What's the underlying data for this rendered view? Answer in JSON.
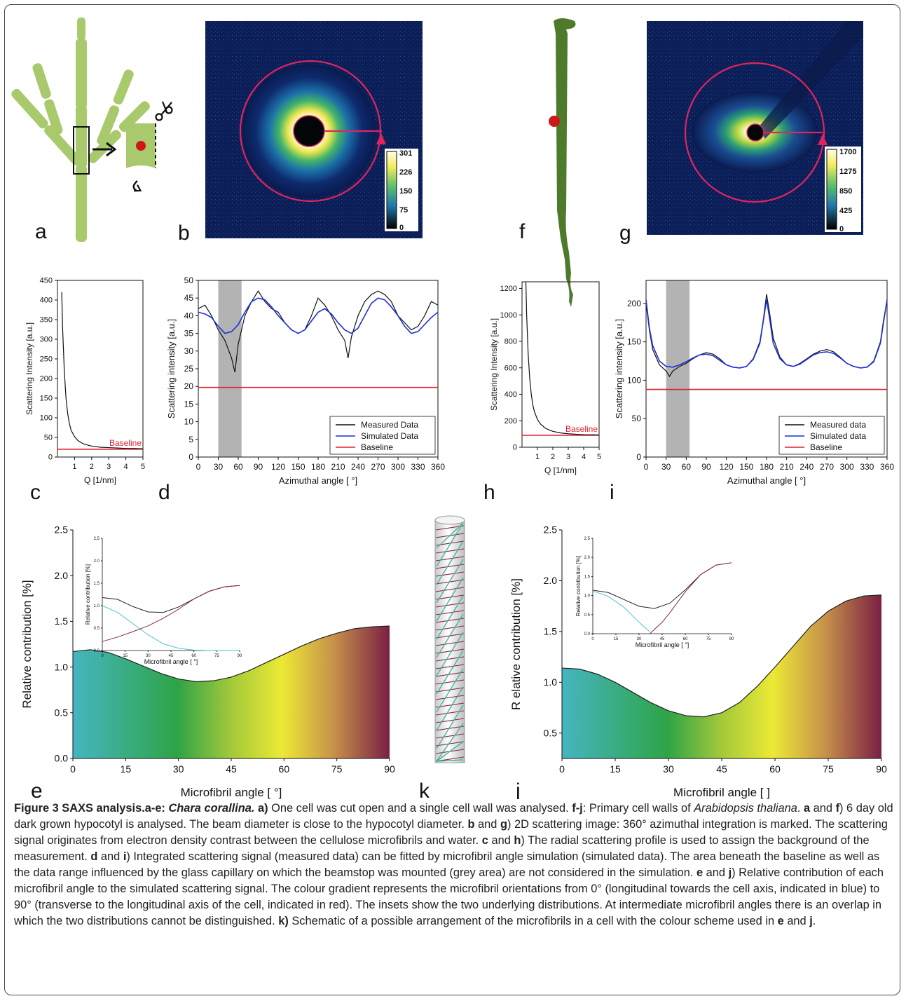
{
  "panel_letters": {
    "a": "a",
    "b": "b",
    "c": "c",
    "d": "d",
    "e": "e",
    "f": "f",
    "g": "g",
    "h": "h",
    "i": "i",
    "j": "j",
    "k": "k"
  },
  "colorbar_b": {
    "ticks": [
      "301",
      "226",
      "150",
      "75",
      "0"
    ]
  },
  "colorbar_g": {
    "ticks": [
      "1700",
      "1275",
      "850",
      "425",
      "0"
    ]
  },
  "colors": {
    "baseline": "#e0202e",
    "measured": "#111111",
    "simulated": "#1c2fd8",
    "ring": "#e0245e",
    "plant_light": "#a9c96d",
    "plant_dark": "#4e7a2c"
  },
  "chart_data": [
    {
      "id": "c",
      "type": "line",
      "ylabel": "Scattering Intensity [a.u.]",
      "xlabel": "Q [1/nm]",
      "xlim": [
        0,
        5
      ],
      "ylim": [
        0,
        450
      ],
      "xticks": [
        "1",
        "2",
        "3",
        "4",
        "5"
      ],
      "yticks": [
        "0",
        "50",
        "100",
        "150",
        "200",
        "250",
        "300",
        "350",
        "400",
        "450"
      ],
      "baseline": 20,
      "annotation": "Baseline",
      "series": [
        {
          "x": [
            0.25,
            0.3,
            0.4,
            0.5,
            0.6,
            0.7,
            0.8,
            1.0,
            1.2,
            1.5,
            1.8,
            2.0,
            2.5,
            3.0,
            3.5,
            4.0,
            4.5,
            5.0
          ],
          "y": [
            420,
            330,
            220,
            150,
            110,
            85,
            68,
            52,
            42,
            34,
            30,
            28,
            25,
            24,
            23,
            22,
            22,
            21
          ]
        }
      ]
    },
    {
      "id": "d",
      "type": "line",
      "ylabel": "Scattering intensity [a.u.]",
      "xlabel": "Azimuthal angle [ °]",
      "xlim": [
        0,
        360
      ],
      "ylim": [
        0,
        50
      ],
      "xticks": [
        "0",
        "30",
        "60",
        "90",
        "120",
        "150",
        "180",
        "210",
        "240",
        "270",
        "300",
        "330",
        "360"
      ],
      "yticks": [
        "0",
        "5",
        "10",
        "15",
        "20",
        "25",
        "30",
        "35",
        "40",
        "45",
        "50"
      ],
      "shaded": [
        30,
        65
      ],
      "baseline": 19.7,
      "legend": [
        "Measured Data",
        "Simulated Data",
        "Baseline"
      ],
      "series": [
        {
          "name": "Measured Data",
          "x": [
            0,
            10,
            20,
            30,
            40,
            50,
            55,
            60,
            70,
            80,
            90,
            100,
            110,
            120,
            130,
            140,
            150,
            160,
            170,
            180,
            190,
            200,
            210,
            220,
            225,
            230,
            240,
            250,
            260,
            270,
            280,
            290,
            300,
            310,
            320,
            330,
            340,
            350,
            360
          ],
          "y": [
            42,
            43,
            40,
            36,
            33,
            28,
            24,
            32,
            40,
            44,
            47,
            44,
            42,
            41,
            38,
            36,
            35,
            36,
            40,
            45,
            43,
            40,
            36,
            33,
            28,
            34,
            40,
            44,
            46,
            47,
            46,
            44,
            40,
            38,
            36,
            37,
            40,
            44,
            43
          ]
        },
        {
          "name": "Simulated Data",
          "x": [
            0,
            10,
            20,
            30,
            40,
            50,
            60,
            70,
            80,
            90,
            100,
            110,
            120,
            130,
            140,
            150,
            160,
            170,
            180,
            190,
            200,
            210,
            220,
            230,
            240,
            250,
            260,
            270,
            280,
            290,
            300,
            310,
            320,
            330,
            340,
            350,
            360
          ],
          "y": [
            41,
            40.5,
            39.5,
            37,
            35,
            35.5,
            37.5,
            41,
            44,
            45,
            44.5,
            42.5,
            40,
            38,
            36,
            35,
            36,
            38.5,
            41,
            42,
            40.5,
            38,
            36,
            35,
            36.5,
            40,
            43.5,
            45,
            44.5,
            42.5,
            40,
            37,
            35,
            35.5,
            37.5,
            39.5,
            41
          ]
        }
      ]
    },
    {
      "id": "h",
      "type": "line",
      "ylabel": "Scattering Intensity [a.u.]",
      "xlabel": "Q [1/nm]",
      "xlim": [
        0,
        5
      ],
      "ylim": [
        0,
        1250
      ],
      "xticks": [
        "1",
        "2",
        "3",
        "4",
        "5"
      ],
      "yticks": [
        "0",
        "200",
        "400",
        "600",
        "800",
        "1000",
        "1200"
      ],
      "baseline": 90,
      "annotation": "Baseline",
      "series": [
        {
          "x": [
            0.25,
            0.3,
            0.4,
            0.5,
            0.6,
            0.7,
            0.8,
            1.0,
            1.2,
            1.5,
            1.8,
            2.0,
            2.5,
            3.0,
            3.5,
            4.0,
            4.5,
            5.0
          ],
          "y": [
            1250,
            1000,
            700,
            520,
            400,
            320,
            270,
            210,
            175,
            145,
            128,
            120,
            108,
            102,
            98,
            95,
            94,
            93
          ]
        }
      ]
    },
    {
      "id": "i",
      "type": "line",
      "ylabel": "Scattering intensity [a.u.]",
      "xlabel": "Azimuthal angle [ °]",
      "xlim": [
        0,
        360
      ],
      "ylim": [
        0,
        230
      ],
      "xticks": [
        "0",
        "30",
        "60",
        "90",
        "120",
        "150",
        "180",
        "210",
        "240",
        "270",
        "300",
        "330",
        "360"
      ],
      "yticks": [
        "0",
        "50",
        "100",
        "150",
        "200"
      ],
      "shaded": [
        30,
        65
      ],
      "baseline": 88,
      "legend": [
        "Measured data",
        "Simulated data",
        "Baseline"
      ],
      "series": [
        {
          "name": "Measured data",
          "x": [
            0,
            5,
            10,
            20,
            30,
            35,
            40,
            50,
            60,
            70,
            80,
            90,
            100,
            110,
            120,
            130,
            140,
            150,
            160,
            170,
            175,
            180,
            185,
            190,
            200,
            210,
            220,
            230,
            240,
            250,
            260,
            270,
            280,
            290,
            300,
            310,
            320,
            330,
            340,
            350,
            355,
            360
          ],
          "y": [
            200,
            165,
            140,
            120,
            112,
            105,
            112,
            118,
            122,
            128,
            133,
            136,
            134,
            128,
            120,
            117,
            116,
            118,
            128,
            150,
            178,
            212,
            185,
            155,
            130,
            120,
            118,
            122,
            128,
            134,
            138,
            140,
            137,
            130,
            122,
            118,
            116,
            117,
            125,
            150,
            180,
            203
          ]
        },
        {
          "name": "Simulated data",
          "x": [
            0,
            5,
            10,
            20,
            30,
            40,
            50,
            60,
            70,
            80,
            90,
            100,
            110,
            120,
            130,
            140,
            150,
            160,
            170,
            175,
            180,
            185,
            190,
            200,
            210,
            220,
            230,
            240,
            250,
            260,
            270,
            280,
            290,
            300,
            310,
            320,
            330,
            340,
            350,
            355,
            360
          ],
          "y": [
            205,
            168,
            145,
            125,
            118,
            117,
            120,
            124,
            129,
            133,
            134,
            132,
            126,
            120,
            117,
            116,
            118,
            127,
            148,
            176,
            205,
            178,
            148,
            128,
            120,
            118,
            121,
            127,
            133,
            136,
            137,
            135,
            129,
            122,
            118,
            116,
            117,
            124,
            148,
            177,
            205
          ]
        }
      ]
    },
    {
      "id": "e",
      "type": "area",
      "ylabel": "Relative contribution [%]",
      "xlabel": "Microfibril angle [ °]",
      "xlim": [
        0,
        90
      ],
      "ylim": [
        0,
        2.5
      ],
      "xticks": [
        "0",
        "15",
        "30",
        "45",
        "60",
        "75",
        "90"
      ],
      "yticks": [
        "0.0",
        "0.5",
        "1.0",
        "1.5",
        "2.0",
        "2.5"
      ],
      "series": [
        {
          "x": [
            0,
            5,
            10,
            15,
            20,
            25,
            30,
            35,
            40,
            45,
            50,
            55,
            60,
            65,
            70,
            75,
            80,
            85,
            90
          ],
          "y": [
            1.17,
            1.19,
            1.16,
            1.09,
            1.01,
            0.93,
            0.87,
            0.84,
            0.85,
            0.89,
            0.96,
            1.05,
            1.14,
            1.23,
            1.31,
            1.37,
            1.42,
            1.44,
            1.45
          ]
        }
      ],
      "inset": {
        "ylabel": "Relative contribution [%]",
        "xlabel": "Microfibril angle [ °]",
        "xlim": [
          0,
          90
        ],
        "ylim": [
          0,
          2.5
        ],
        "xticks": [
          "0",
          "15",
          "30",
          "45",
          "60",
          "75",
          "90"
        ],
        "yticks": [
          "0.0",
          "0.5",
          "1.0",
          "1.5",
          "2.0",
          "2.5"
        ],
        "series": [
          {
            "x": [
              0,
              10,
              20,
              30,
              40,
              50,
              60,
              70,
              80,
              90
            ],
            "y": [
              1.18,
              1.14,
              0.98,
              0.86,
              0.85,
              0.97,
              1.15,
              1.32,
              1.42,
              1.45
            ]
          },
          {
            "x": [
              0,
              10,
              20,
              30,
              40,
              50,
              60,
              70,
              80,
              90
            ],
            "y": [
              1.0,
              0.85,
              0.6,
              0.35,
              0.15,
              0.05,
              0.01,
              0,
              0,
              0
            ]
          },
          {
            "x": [
              0,
              10,
              20,
              30,
              40,
              50,
              60,
              70,
              80,
              90
            ],
            "y": [
              0.2,
              0.3,
              0.42,
              0.55,
              0.72,
              0.92,
              1.15,
              1.32,
              1.42,
              1.45
            ]
          }
        ]
      }
    },
    {
      "id": "j",
      "type": "area",
      "ylabel": "R elative contribution [%]",
      "xlabel": "Microfibril angle [ ]",
      "xlim": [
        0,
        90
      ],
      "ylim": [
        0.25,
        2.5
      ],
      "xticks": [
        "0",
        "15",
        "30",
        "45",
        "60",
        "75",
        "90"
      ],
      "yticks": [
        "0.5",
        "1.0",
        "1.5",
        "2.0",
        "2.5"
      ],
      "series": [
        {
          "x": [
            0,
            5,
            10,
            15,
            20,
            25,
            30,
            35,
            40,
            45,
            50,
            55,
            60,
            65,
            70,
            75,
            80,
            85,
            90
          ],
          "y": [
            1.14,
            1.13,
            1.08,
            1.0,
            0.9,
            0.8,
            0.72,
            0.67,
            0.66,
            0.7,
            0.8,
            0.96,
            1.15,
            1.35,
            1.55,
            1.7,
            1.8,
            1.85,
            1.86
          ]
        }
      ],
      "inset": {
        "ylabel": "Relative contribution [%]",
        "xlabel": "Microfibril angle [ °]",
        "xlim": [
          0,
          90
        ],
        "ylim": [
          0,
          2.5
        ],
        "xticks": [
          "0",
          "15",
          "30",
          "45",
          "60",
          "75",
          "90"
        ],
        "yticks": [
          "0.0",
          "0.5",
          "1.0",
          "1.5",
          "2.0",
          "2.5"
        ],
        "series": [
          {
            "x": [
              0,
              10,
              20,
              30,
              40,
              50,
              60,
              70,
              80,
              90
            ],
            "y": [
              1.14,
              1.08,
              0.9,
              0.72,
              0.66,
              0.8,
              1.15,
              1.55,
              1.8,
              1.86
            ]
          },
          {
            "x": [
              0,
              10,
              20,
              30,
              37
            ],
            "y": [
              1.12,
              0.98,
              0.7,
              0.3,
              0.05
            ]
          },
          {
            "x": [
              37,
              45,
              50,
              60,
              70,
              80,
              90
            ],
            "y": [
              0,
              0.3,
              0.55,
              1.1,
              1.55,
              1.8,
              1.86
            ]
          }
        ]
      }
    }
  ],
  "caption": {
    "title": "Figure 3 SAXS analysis.a-e: ",
    "species_a": "Chara corallina.",
    "a_label": " a)",
    "p1": " One cell was cut open and a single cell wall was analysed. ",
    "fj": "f-j",
    "p2": ": Primary cell walls of ",
    "arab": "Arabidopsis thaliana",
    "p3": ". ",
    "a2": "a",
    "and1": " and ",
    "f2": "f",
    "p4": ") 6 day old dark grown hypocotyl is analysed. The beam diameter is close to the hypocotyl diameter. ",
    "b": "b",
    "and2": " and ",
    "g": "g",
    "p5": ") 2D scattering image: 360° azimuthal integration is marked. The scattering signal originates from electron density contrast between the cellulose microfibrils and water. ",
    "c": "c",
    "and3": " and ",
    "h": "h",
    "p6": ") The radial scattering profile is used to assign the background of the measurement. ",
    "d": "d",
    "and4": " and ",
    "i": "i",
    "p7": ") Integrated scattering signal (measured data) can be fitted by microfibril angle simulation (simulated data). The area beneath the baseline as well as the data range influenced by the glass capillary on which the beamstop was mounted (grey area) are not considered in the simulation. ",
    "e": "e",
    "and5": " and ",
    "j": "j",
    "p8": ") Relative contribution of each microfibril angle to the simulated scattering signal. The colour gradient represents the microfibril orientations from 0° (longitudinal towards the cell axis, indicated in blue) to 90° (transverse to the longitudinal axis of the cell, indicated in red). The insets show the two underlying distributions. At intermediate microfibril angles there is an overlap in which the two distributions cannot be distinguished. ",
    "k": "k)",
    "p9": " Schematic of a possible arrangement of the microfibrils in a cell with the colour scheme used in ",
    "e2": "e",
    "and6": " and ",
    "j2": "j",
    "p10": "."
  }
}
